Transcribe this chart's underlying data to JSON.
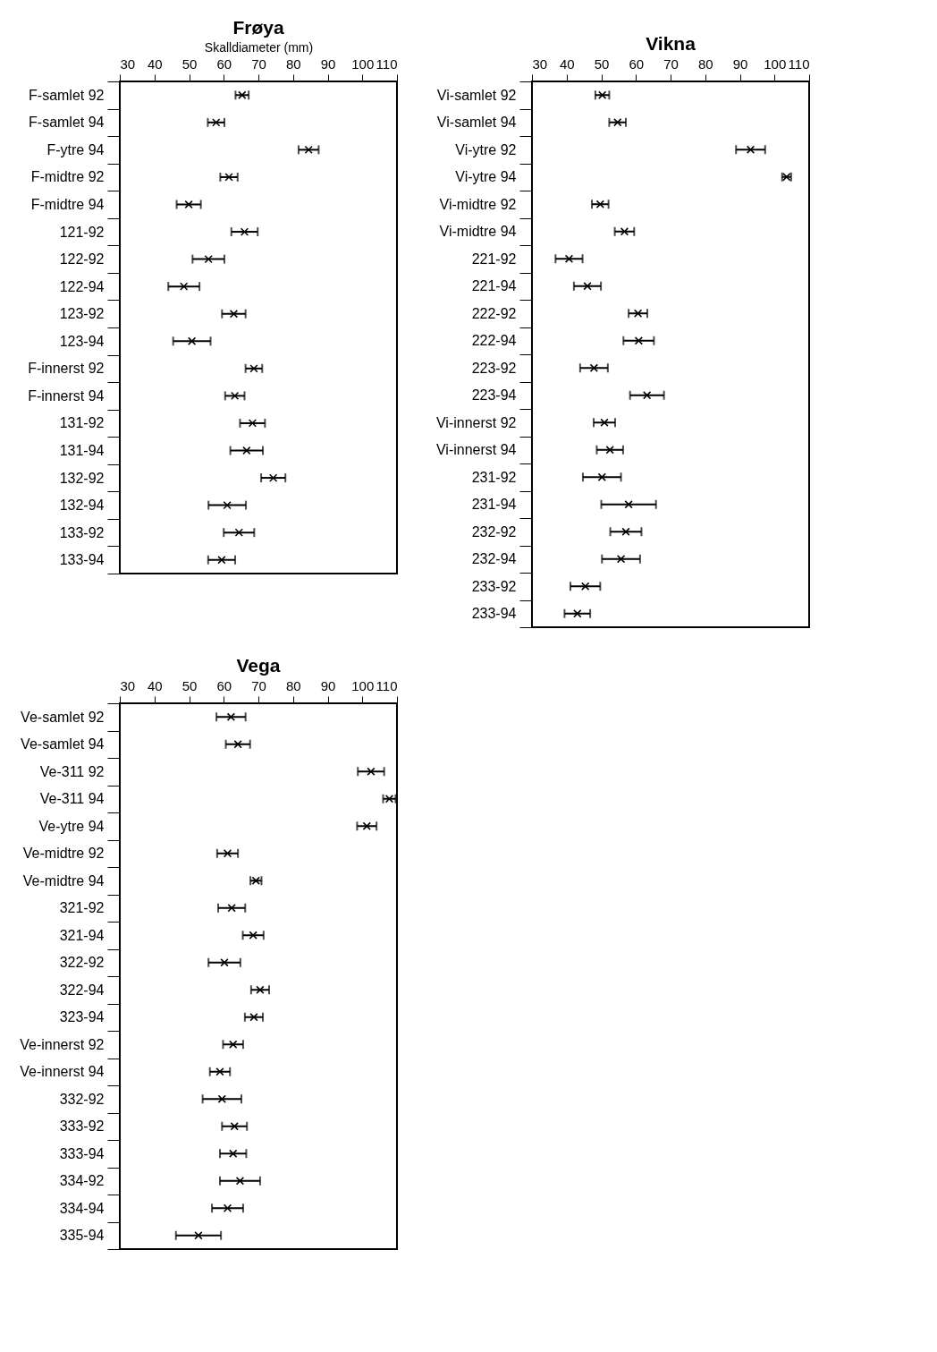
{
  "chart_data": [
    {
      "type": "scatter",
      "title": "Frøya",
      "xlabel": "Skalldiameter (mm)",
      "marker": "cross",
      "grid": false,
      "orientation": "horizontal",
      "categories": [
        "F-samlet 92",
        "F-samlet 94",
        "F-ytre 94",
        "F-midtre 92",
        "F-midtre 94",
        "121-92",
        "122-92",
        "122-94",
        "123-92",
        "123-94",
        "F-innerst 92",
        "F-innerst 94",
        "131-92",
        "131-94",
        "132-92",
        "132-94",
        "133-92",
        "133-94"
      ],
      "xlim": [
        30,
        110
      ],
      "xticks": [
        30,
        40,
        50,
        60,
        70,
        80,
        90,
        100,
        110
      ],
      "series": [
        {
          "color": "#000000",
          "values": [
            65.3,
            57.8,
            84.5,
            61.5,
            49.9,
            66.0,
            55.6,
            48.5,
            62.9,
            50.8,
            68.7,
            63.2,
            68.3,
            66.6,
            74.3,
            61.0,
            64.4,
            59.4
          ],
          "errors": [
            1.9,
            2.4,
            2.9,
            2.5,
            3.5,
            3.8,
            4.6,
            4.5,
            3.4,
            5.4,
            2.4,
            2.8,
            3.6,
            4.7,
            3.5,
            5.4,
            4.4,
            3.9
          ]
        }
      ]
    },
    {
      "type": "scatter",
      "title": "Vikna",
      "marker": "cross",
      "grid": false,
      "orientation": "horizontal",
      "categories": [
        "Vi-samlet 92",
        "Vi-samlet 94",
        "Vi-ytre 92",
        "Vi-ytre 94",
        "Vi-midtre 92",
        "Vi-midtre 94",
        "221-92",
        "221-94",
        "222-92",
        "222-94",
        "223-92",
        "223-94",
        "Vi-innerst 92",
        "Vi-innerst 94",
        "231-92",
        "231-94",
        "232-92",
        "232-94",
        "233-92",
        "233-94"
      ],
      "xlim": [
        30,
        110
      ],
      "xticks": [
        30,
        40,
        50,
        60,
        70,
        80,
        90,
        100,
        110
      ],
      "series": [
        {
          "color": "#000000",
          "values": [
            50.3,
            54.7,
            93.1,
            103.5,
            49.7,
            56.7,
            40.7,
            46.0,
            60.6,
            60.8,
            47.9,
            63.2,
            50.9,
            52.5,
            50.2,
            57.9,
            57.1,
            55.7,
            45.4,
            43.1
          ],
          "errors": [
            2.0,
            2.4,
            4.2,
            1.3,
            2.4,
            2.8,
            3.9,
            3.9,
            2.7,
            4.4,
            4.0,
            4.9,
            3.1,
            3.8,
            5.5,
            7.9,
            4.5,
            5.5,
            4.3,
            3.7
          ]
        }
      ]
    },
    {
      "type": "scatter",
      "title": "Vega",
      "marker": "cross",
      "grid": false,
      "orientation": "horizontal",
      "categories": [
        "Ve-samlet 92",
        "Ve-samlet 94",
        "Ve-311 92",
        "Ve-311 94",
        "Ve-ytre 94",
        "Ve-midtre 92",
        "Ve-midtre 94",
        "321-92",
        "321-94",
        "322-92",
        "322-94",
        "323-94",
        "Ve-innerst 92",
        "Ve-innerst 94",
        "332-92",
        "333-92",
        "333-94",
        "334-92",
        "334-94",
        "335-94"
      ],
      "xlim": [
        30,
        110
      ],
      "xticks": [
        30,
        40,
        50,
        60,
        70,
        80,
        90,
        100,
        110
      ],
      "series": [
        {
          "color": "#000000",
          "values": [
            62.1,
            64.1,
            102.5,
            107.8,
            101.3,
            61.1,
            69.3,
            62.3,
            68.5,
            60.2,
            70.5,
            68.7,
            62.7,
            58.9,
            59.5,
            63.1,
            62.7,
            64.7,
            61.1,
            52.7
          ],
          "errors": [
            4.2,
            3.5,
            3.8,
            1.8,
            2.8,
            3.0,
            1.6,
            3.9,
            3.0,
            4.6,
            2.6,
            2.6,
            2.9,
            2.9,
            5.6,
            3.6,
            3.8,
            5.8,
            4.5,
            6.5
          ]
        }
      ]
    }
  ]
}
